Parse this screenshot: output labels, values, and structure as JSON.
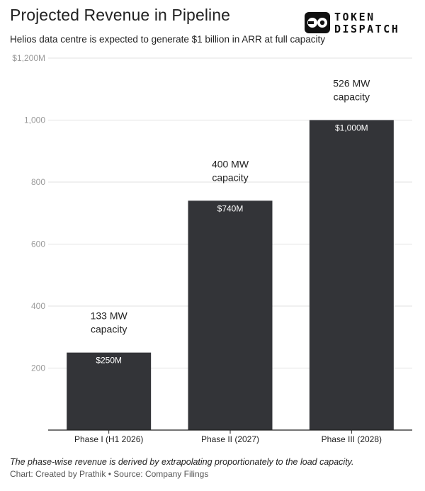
{
  "title": "Projected Revenue in Pipeline",
  "subtitle": "Helios data centre is expected to generate $1 billion in ARR at full capacity",
  "logo": {
    "line1": "TOKEN",
    "line2": "DISPATCH",
    "icon": "eyes-logo-icon"
  },
  "footnote": "The phase-wise revenue is derived by extrapolating proportionately to the load capacity.",
  "credit": "Chart: Created by Prathik • Source: Company Filings",
  "colors": {
    "bar": "#333438",
    "grid": "#e2e2e2",
    "axis": "#222222",
    "tick": "#999999",
    "label_inside": "#ffffff"
  },
  "chart_data": {
    "type": "bar",
    "categories": [
      "Phase I (H1 2026)",
      "Phase II (2027)",
      "Phase III (2028)"
    ],
    "values": [
      250,
      740,
      1000
    ],
    "value_labels": [
      "$250M",
      "$740M",
      "$1,000M"
    ],
    "annotations": [
      [
        "133 MW",
        "capacity"
      ],
      [
        "400 MW",
        "capacity"
      ],
      [
        "526 MW",
        "capacity"
      ]
    ],
    "yticks": [
      200,
      400,
      600,
      800,
      1000,
      1200
    ],
    "ytick_labels": [
      "200",
      "400",
      "600",
      "800",
      "1,000",
      "$1,200M"
    ],
    "ylim": [
      0,
      1200
    ],
    "grid": true,
    "xlabel": "",
    "ylabel": ""
  }
}
